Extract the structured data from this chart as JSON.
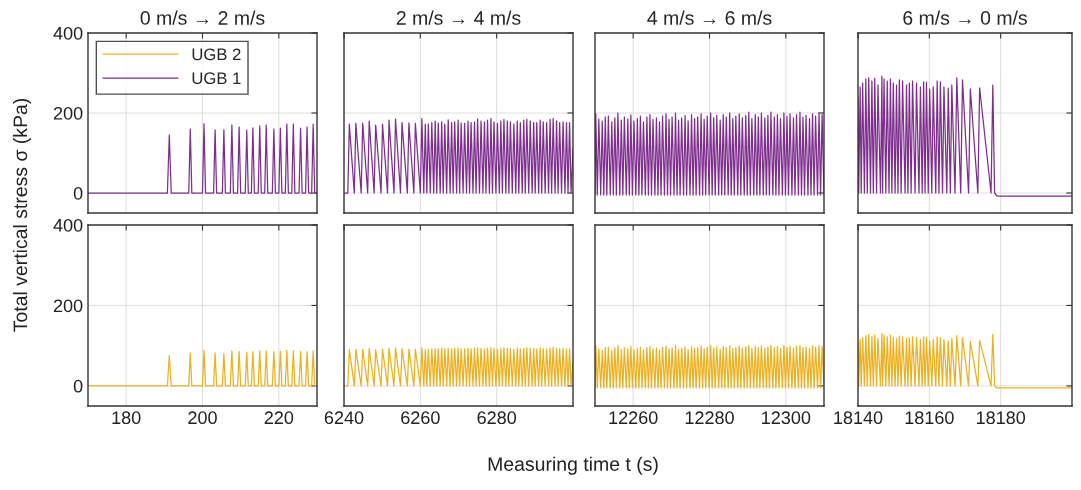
{
  "chart_data": [
    {
      "type": "line",
      "title": "0 m/s → 2 m/s",
      "ylabel": "Total vertical stress σ (kPa)",
      "legend": "top left",
      "grid": true,
      "tick_labels": "y",
      "xlim": [
        170,
        230
      ],
      "xticks": [
        180,
        200,
        220
      ],
      "ylim": [
        -50,
        400
      ],
      "yticks": [
        0,
        200,
        400
      ],
      "series": [
        {
          "name": "UGB 1",
          "color": "#7e2f8e",
          "x": [
            170,
            190.8,
            191.3,
            191.8,
            196.4,
            196.8,
            197.2,
            200.0,
            200.4,
            200.8,
            202.9,
            203.3,
            203.7,
            205.2,
            205.6,
            206.0,
            207.3,
            207.7,
            208.1,
            209.2,
            209.6,
            210.0,
            211.2,
            211.6,
            212.0,
            212.8,
            213.2,
            213.6,
            214.6,
            215.0,
            215.4,
            216.3,
            216.7,
            217.1,
            218.3,
            218.7,
            219.1,
            220.0,
            220.4,
            220.8,
            221.7,
            222.1,
            222.5,
            223.4,
            223.8,
            224.2,
            225.3,
            225.7,
            226.1,
            227.0,
            227.4,
            227.8,
            228.6,
            229.0,
            229.4,
            230
          ],
          "values": [
            0,
            0,
            145,
            0,
            0,
            160,
            0,
            0,
            173,
            0,
            0,
            158,
            0,
            0,
            158,
            0,
            0,
            170,
            0,
            0,
            165,
            0,
            0,
            157,
            0,
            0,
            163,
            0,
            0,
            168,
            0,
            0,
            170,
            0,
            0,
            160,
            0,
            0,
            162,
            0,
            0,
            172,
            0,
            0,
            172,
            0,
            0,
            162,
            0,
            0,
            165,
            0,
            0,
            172,
            0,
            0
          ]
        }
      ]
    },
    {
      "type": "line",
      "title": "2 m/s → 4 m/s",
      "grid": true,
      "tick_labels": false,
      "xlim": [
        6240,
        6300
      ],
      "xticks": [
        6240,
        6260,
        6280
      ],
      "ylim": [
        -50,
        400
      ],
      "yticks": [
        0,
        200,
        400
      ],
      "series": [
        {
          "color": "#7e2f8e",
          "x": [
            6240,
            6241.0,
            6241.4,
            6242.7,
            6243.1,
            6244.5,
            6244.9,
            6246.2,
            6246.6,
            6247.9,
            6248.3,
            6249.7,
            6250.1,
            6251.4,
            6251.8,
            6253.1,
            6253.5,
            6254.8,
            6255.2,
            6256.6,
            6257.0,
            6258.3,
            6258.7,
            6260.0,
            6260.4,
            6260.9,
            6261.3,
            6261.7,
            6262.1,
            6262.6,
            6263.0,
            6263.5,
            6263.9,
            6264.3,
            6264.7,
            6265.2,
            6265.6,
            6266.0,
            6266.4,
            6266.9,
            6267.3,
            6267.8,
            6268.2,
            6268.6,
            6269.0,
            6269.5,
            6269.9,
            6270.3,
            6270.7,
            6271.2,
            6271.6,
            6272.1,
            6272.5,
            6272.9,
            6273.3,
            6273.8,
            6274.2,
            6274.6,
            6275.0,
            6275.5,
            6275.9,
            6276.4,
            6276.8,
            6277.2,
            6277.6,
            6278.1,
            6278.5,
            6278.9,
            6279.3,
            6279.8,
            6280.2,
            6280.7,
            6281.1,
            6281.5,
            6281.9,
            6282.4,
            6282.8,
            6283.2,
            6283.6,
            6284.1,
            6284.5,
            6285.0,
            6285.4,
            6285.8,
            6286.2,
            6286.7,
            6287.1,
            6287.5,
            6287.9,
            6288.4,
            6288.8,
            6289.3,
            6289.7,
            6290.1,
            6290.5,
            6291.0,
            6291.4,
            6291.8,
            6292.2,
            6292.7,
            6293.1,
            6293.6,
            6294.0,
            6294.4,
            6294.8,
            6295.3,
            6295.7,
            6296.1,
            6296.5,
            6297.0,
            6297.4,
            6297.9,
            6298.3,
            6298.7,
            6299.1,
            6299.5,
            6300
          ],
          "values": [
            0,
            0,
            172,
            0,
            174,
            0,
            175,
            0,
            180,
            0,
            170,
            0,
            172,
            0,
            182,
            0,
            185,
            0,
            176,
            0,
            175,
            0,
            174,
            0,
            186,
            0,
            172,
            0,
            172,
            0,
            176,
            0,
            180,
            0,
            175,
            0,
            178,
            0,
            172,
            0,
            183,
            0,
            176,
            0,
            178,
            0,
            182,
            0,
            175,
            0,
            174,
            0,
            180,
            0,
            176,
            0,
            178,
            0,
            185,
            0,
            180,
            0,
            178,
            0,
            182,
            0,
            186,
            0,
            178,
            0,
            174,
            0,
            180,
            0,
            184,
            0,
            180,
            0,
            178,
            0,
            172,
            0,
            180,
            0,
            176,
            0,
            182,
            0,
            184,
            0,
            180,
            0,
            176,
            0,
            176,
            0,
            182,
            0,
            178,
            0,
            176,
            0,
            184,
            0,
            186,
            0,
            180,
            0,
            176,
            0,
            178,
            0,
            176,
            0,
            176,
            0,
            110
          ]
        }
      ]
    },
    {
      "type": "line",
      "title": "4 m/s → 6 m/s",
      "grid": true,
      "tick_labels": false,
      "xlim": [
        12250,
        12310
      ],
      "xticks": [
        12260,
        12280,
        12300
      ],
      "ylim": [
        -50,
        400
      ],
      "yticks": [
        0,
        200,
        400
      ],
      "series": [
        {
          "color": "#7e2f8e",
          "x": [
            12250.0,
            12250.2,
            12250.6,
            12251.0,
            12251.5,
            12251.9,
            12252.3,
            12252.7,
            12253.1,
            12253.5,
            12254.0,
            12254.4,
            12254.8,
            12255.2,
            12255.6,
            12256.0,
            12256.5,
            12256.9,
            12257.3,
            12257.7,
            12258.2,
            12258.6,
            12259.0,
            12259.4,
            12259.8,
            12260.2,
            12260.7,
            12261.1,
            12261.5,
            12261.9,
            12262.3,
            12262.7,
            12263.2,
            12263.6,
            12264.0,
            12264.4,
            12264.8,
            12265.2,
            12265.7,
            12266.1,
            12266.5,
            12266.9,
            12267.3,
            12267.7,
            12268.2,
            12268.6,
            12269.0,
            12269.4,
            12269.8,
            12270.2,
            12270.7,
            12271.1,
            12271.5,
            12271.9,
            12272.3,
            12272.7,
            12273.2,
            12273.6,
            12274.0,
            12274.4,
            12274.9,
            12275.3,
            12275.7,
            12276.1,
            12276.5,
            12276.9,
            12277.4,
            12277.8,
            12278.2,
            12278.6,
            12279.0,
            12279.4,
            12279.9,
            12280.3,
            12280.7,
            12281.1,
            12281.5,
            12281.9,
            12282.4,
            12282.8,
            12283.2,
            12283.6,
            12284.0,
            12284.4,
            12284.9,
            12285.3,
            12285.7,
            12286.1,
            12286.5,
            12286.9,
            12287.4,
            12287.8,
            12288.2,
            12288.6,
            12289.1,
            12289.5,
            12289.9,
            12290.3,
            12290.7,
            12291.1,
            12291.6,
            12292.0,
            12292.4,
            12292.8,
            12293.2,
            12293.6,
            12294.1,
            12294.5,
            12294.9,
            12295.3,
            12295.7,
            12296.1,
            12296.6,
            12297.0,
            12297.4,
            12297.8,
            12298.2,
            12298.6,
            12299.1,
            12299.5,
            12299.9,
            12300.3,
            12300.7,
            12301.1,
            12301.6,
            12302.0,
            12302.4,
            12302.8,
            12303.3,
            12303.7,
            12304.1,
            12304.5,
            12304.9,
            12305.3,
            12305.8,
            12306.2,
            12306.6,
            12307.0,
            12307.4,
            12307.8,
            12308.3,
            12308.7,
            12309.1,
            12309.5,
            12310
          ],
          "values": [
            -5,
            198,
            -5,
            185,
            -5,
            180,
            -5,
            190,
            -5,
            192,
            -5,
            178,
            -5,
            188,
            -5,
            200,
            -5,
            182,
            -5,
            190,
            -5,
            185,
            -5,
            195,
            -5,
            180,
            -5,
            186,
            -5,
            192,
            -5,
            178,
            -5,
            190,
            -5,
            196,
            -5,
            184,
            -5,
            188,
            -5,
            178,
            -5,
            192,
            -5,
            198,
            -5,
            184,
            -5,
            190,
            -5,
            200,
            -5,
            182,
            -5,
            188,
            -5,
            194,
            -5,
            180,
            -5,
            196,
            -5,
            186,
            -5,
            190,
            -5,
            198,
            -5,
            184,
            -5,
            192,
            -5,
            200,
            -5,
            188,
            -5,
            194,
            -5,
            182,
            -5,
            196,
            -5,
            190,
            -5,
            200,
            -5,
            186,
            -5,
            192,
            -5,
            198,
            -5,
            188,
            -5,
            194,
            -5,
            202,
            -5,
            186,
            -5,
            196,
            -5,
            190,
            -5,
            200,
            -5,
            188,
            -5,
            194,
            -5,
            202,
            -5,
            190,
            -5,
            196,
            -5,
            186,
            -5,
            200,
            -5,
            192,
            -5,
            198,
            -5,
            188,
            -5,
            196,
            -5,
            202,
            -5,
            190,
            -5,
            194,
            -5,
            186,
            -5,
            198,
            -5,
            192,
            -5,
            200,
            -5,
            196,
            -5
          ]
        }
      ]
    },
    {
      "type": "line",
      "title": "6 m/s → 0 m/s",
      "grid": true,
      "tick_labels": false,
      "xlim": [
        18140,
        18200
      ],
      "xticks": [
        18140,
        18160,
        18180
      ],
      "ylim": [
        -50,
        400
      ],
      "yticks": [
        0,
        200,
        400
      ],
      "series": [
        {
          "color": "#7e2f8e",
          "x": [
            18140,
            18140.2,
            18140.6,
            18140.9,
            18141.3,
            18141.8,
            18142.2,
            18142.6,
            18143.0,
            18143.5,
            18143.9,
            18144.3,
            18144.7,
            18145.2,
            18145.6,
            18146.3,
            18146.7,
            18146.9,
            18147.3,
            18147.8,
            18148.2,
            18148.7,
            18149.1,
            18149.5,
            18149.9,
            18150.4,
            18150.8,
            18151.2,
            18151.6,
            18152.1,
            18152.5,
            18153.2,
            18153.6,
            18154.0,
            18154.4,
            18154.9,
            18155.3,
            18156.0,
            18156.4,
            18157.1,
            18157.5,
            18158.0,
            18158.4,
            18158.8,
            18159.2,
            18159.7,
            18160.1,
            18160.7,
            18161.1,
            18161.8,
            18162.2,
            18162.7,
            18163.1,
            18163.7,
            18164.1,
            18164.9,
            18165.3,
            18165.9,
            18166.3,
            18167.2,
            18167.7,
            18168.8,
            18169.3,
            18171.0,
            18171.5,
            18173.6,
            18174.1,
            18177.3,
            18177.8,
            18178.3,
            18179.0,
            18200
          ],
          "values": [
            240,
            0,
            265,
            0,
            275,
            0,
            285,
            0,
            288,
            0,
            280,
            0,
            287,
            0,
            270,
            0,
            292,
            0,
            285,
            0,
            280,
            0,
            285,
            0,
            275,
            0,
            270,
            0,
            283,
            0,
            280,
            0,
            270,
            0,
            275,
            0,
            280,
            0,
            275,
            0,
            265,
            0,
            278,
            0,
            277,
            0,
            260,
            0,
            265,
            0,
            280,
            0,
            278,
            0,
            265,
            0,
            262,
            0,
            270,
            0,
            288,
            0,
            283,
            0,
            260,
            0,
            263,
            0,
            270,
            0,
            -8,
            -8
          ]
        }
      ]
    },
    {
      "type": "line",
      "grid": true,
      "xlim": [
        170,
        230
      ],
      "xticks": [
        180,
        200,
        220
      ],
      "ylim": [
        -50,
        400
      ],
      "yticks": [
        0,
        200,
        400
      ],
      "series": [
        {
          "name": "UGB 2",
          "color": "#edb120",
          "x": [
            170,
            190.8,
            191.3,
            191.8,
            196.4,
            196.8,
            197.2,
            200.0,
            200.4,
            200.8,
            202.9,
            203.3,
            203.7,
            205.2,
            205.6,
            206.0,
            207.3,
            207.7,
            208.1,
            209.2,
            209.6,
            210.0,
            211.2,
            211.6,
            212.0,
            212.8,
            213.2,
            213.6,
            214.6,
            215.0,
            215.4,
            216.3,
            216.7,
            217.1,
            218.3,
            218.7,
            219.1,
            220.0,
            220.4,
            220.8,
            221.7,
            222.1,
            222.5,
            223.4,
            223.8,
            224.2,
            225.3,
            225.7,
            226.1,
            227.0,
            227.4,
            227.8,
            228.6,
            229.0,
            229.4,
            230
          ],
          "values": [
            0,
            0,
            75,
            0,
            0,
            82,
            0,
            0,
            88,
            0,
            0,
            82,
            0,
            0,
            80,
            0,
            0,
            87,
            0,
            0,
            86,
            0,
            0,
            84,
            0,
            0,
            85,
            0,
            0,
            87,
            0,
            0,
            87,
            0,
            0,
            85,
            0,
            0,
            86,
            0,
            0,
            88,
            0,
            0,
            87,
            0,
            0,
            86,
            0,
            0,
            85,
            0,
            0,
            87,
            0,
            0
          ]
        }
      ]
    },
    {
      "type": "line",
      "grid": true,
      "tick_labels": "x",
      "xlabel": "Measuring time t (s)",
      "xlim": [
        6240,
        6300
      ],
      "xticks": [
        6240,
        6260,
        6280
      ],
      "ylim": [
        -50,
        400
      ],
      "yticks": [
        0,
        200,
        400
      ],
      "series": [
        {
          "color": "#edb120",
          "x": [
            6240,
            6241.0,
            6241.4,
            6242.7,
            6243.1,
            6244.5,
            6244.9,
            6246.2,
            6246.6,
            6247.9,
            6248.3,
            6249.7,
            6250.1,
            6251.4,
            6251.8,
            6253.1,
            6253.5,
            6254.8,
            6255.2,
            6256.6,
            6257.0,
            6258.3,
            6258.7,
            6260.0,
            6260.4,
            6260.9,
            6261.3,
            6261.7,
            6262.1,
            6262.6,
            6263.0,
            6263.5,
            6263.9,
            6264.3,
            6264.7,
            6265.2,
            6265.6,
            6266.0,
            6266.4,
            6266.9,
            6267.3,
            6267.8,
            6268.2,
            6268.6,
            6269.0,
            6269.5,
            6269.9,
            6270.3,
            6270.7,
            6271.2,
            6271.6,
            6272.1,
            6272.5,
            6272.9,
            6273.3,
            6273.8,
            6274.2,
            6274.6,
            6275.0,
            6275.5,
            6275.9,
            6276.4,
            6276.8,
            6277.2,
            6277.6,
            6278.1,
            6278.5,
            6278.9,
            6279.3,
            6279.8,
            6280.2,
            6280.7,
            6281.1,
            6281.5,
            6281.9,
            6282.4,
            6282.8,
            6283.2,
            6283.6,
            6284.1,
            6284.5,
            6285.0,
            6285.4,
            6285.8,
            6286.2,
            6286.7,
            6287.1,
            6287.5,
            6287.9,
            6288.4,
            6288.8,
            6289.3,
            6289.7,
            6290.1,
            6290.5,
            6291.0,
            6291.4,
            6291.8,
            6292.2,
            6292.7,
            6293.1,
            6293.6,
            6294.0,
            6294.4,
            6294.8,
            6295.3,
            6295.7,
            6296.1,
            6296.5,
            6297.0,
            6297.4,
            6297.9,
            6298.3,
            6298.7,
            6299.1,
            6299.5,
            6300
          ],
          "values": [
            0,
            0,
            90,
            0,
            91,
            0,
            91,
            0,
            93,
            0,
            90,
            0,
            91,
            0,
            93,
            0,
            94,
            0,
            92,
            0,
            91,
            0,
            91,
            0,
            95,
            0,
            90,
            0,
            91,
            0,
            92,
            0,
            93,
            0,
            92,
            0,
            94,
            0,
            92,
            0,
            93,
            0,
            92,
            0,
            94,
            0,
            94,
            0,
            92,
            0,
            92,
            0,
            93,
            0,
            92,
            0,
            94,
            0,
            95,
            0,
            93,
            0,
            92,
            0,
            94,
            0,
            95,
            0,
            93,
            0,
            91,
            0,
            93,
            0,
            95,
            0,
            93,
            0,
            93,
            0,
            91,
            0,
            94,
            0,
            92,
            0,
            93,
            0,
            95,
            0,
            93,
            0,
            92,
            0,
            92,
            0,
            95,
            0,
            93,
            0,
            92,
            0,
            94,
            0,
            96,
            0,
            93,
            0,
            92,
            0,
            93,
            0,
            92,
            0,
            92,
            0,
            60
          ]
        }
      ]
    },
    {
      "type": "line",
      "grid": true,
      "tick_labels": "x",
      "xlim": [
        12250,
        12310
      ],
      "xticks": [
        12260,
        12280,
        12300
      ],
      "ylim": [
        -50,
        400
      ],
      "yticks": [
        0,
        200,
        400
      ],
      "series": [
        {
          "color": "#edb120",
          "x": [
            12250.0,
            12250.2,
            12250.6,
            12251.0,
            12251.5,
            12251.9,
            12252.3,
            12252.7,
            12253.1,
            12253.5,
            12254.0,
            12254.4,
            12254.8,
            12255.2,
            12255.6,
            12256.0,
            12256.5,
            12256.9,
            12257.3,
            12257.7,
            12258.2,
            12258.6,
            12259.0,
            12259.4,
            12259.8,
            12260.2,
            12260.7,
            12261.1,
            12261.5,
            12261.9,
            12262.3,
            12262.7,
            12263.2,
            12263.6,
            12264.0,
            12264.4,
            12264.8,
            12265.2,
            12265.7,
            12266.1,
            12266.5,
            12266.9,
            12267.3,
            12267.7,
            12268.2,
            12268.6,
            12269.0,
            12269.4,
            12269.8,
            12270.2,
            12270.7,
            12271.1,
            12271.5,
            12271.9,
            12272.3,
            12272.7,
            12273.2,
            12273.6,
            12274.0,
            12274.4,
            12274.9,
            12275.3,
            12275.7,
            12276.1,
            12276.5,
            12276.9,
            12277.4,
            12277.8,
            12278.2,
            12278.6,
            12279.0,
            12279.4,
            12279.9,
            12280.3,
            12280.7,
            12281.1,
            12281.5,
            12281.9,
            12282.4,
            12282.8,
            12283.2,
            12283.6,
            12284.0,
            12284.4,
            12284.9,
            12285.3,
            12285.7,
            12286.1,
            12286.5,
            12286.9,
            12287.4,
            12287.8,
            12288.2,
            12288.6,
            12289.1,
            12289.5,
            12289.9,
            12290.3,
            12290.7,
            12291.1,
            12291.6,
            12292.0,
            12292.4,
            12292.8,
            12293.2,
            12293.6,
            12294.1,
            12294.5,
            12294.9,
            12295.3,
            12295.7,
            12296.1,
            12296.6,
            12297.0,
            12297.4,
            12297.8,
            12298.2,
            12298.6,
            12299.1,
            12299.5,
            12299.9,
            12300.3,
            12300.7,
            12301.1,
            12301.6,
            12302.0,
            12302.4,
            12302.8,
            12303.3,
            12303.7,
            12304.1,
            12304.5,
            12304.9,
            12305.3,
            12305.8,
            12306.2,
            12306.6,
            12307.0,
            12307.4,
            12307.8,
            12308.3,
            12308.7,
            12309.1,
            12309.5,
            12310
          ],
          "values": [
            -5,
            100,
            -5,
            92,
            -5,
            88,
            -5,
            95,
            -5,
            96,
            -5,
            88,
            -5,
            94,
            -5,
            100,
            -5,
            90,
            -5,
            95,
            -5,
            92,
            -5,
            98,
            -5,
            90,
            -5,
            93,
            -5,
            96,
            -5,
            89,
            -5,
            95,
            -5,
            98,
            -5,
            92,
            -5,
            94,
            -5,
            89,
            -5,
            96,
            -5,
            99,
            -5,
            92,
            -5,
            95,
            -5,
            100,
            -5,
            91,
            -5,
            94,
            -5,
            97,
            -5,
            90,
            -5,
            98,
            -5,
            93,
            -5,
            95,
            -5,
            99,
            -5,
            92,
            -5,
            96,
            -5,
            100,
            -5,
            94,
            -5,
            97,
            -5,
            91,
            -5,
            98,
            -5,
            95,
            -5,
            100,
            -5,
            93,
            -5,
            96,
            -5,
            99,
            -5,
            94,
            -5,
            97,
            -5,
            101,
            -5,
            93,
            -5,
            98,
            -5,
            95,
            -5,
            100,
            -5,
            94,
            -5,
            97,
            -5,
            101,
            -5,
            95,
            -5,
            98,
            -5,
            93,
            -5,
            100,
            -5,
            96,
            -5,
            99,
            -5,
            94,
            -5,
            98,
            -5,
            101,
            -5,
            95,
            -5,
            97,
            -5,
            93,
            -5,
            99,
            -5,
            96,
            -5,
            100,
            -5,
            98,
            -5
          ]
        }
      ]
    },
    {
      "type": "line",
      "grid": true,
      "tick_labels": "x",
      "xlim": [
        18140,
        18200
      ],
      "xticks": [
        18140,
        18160,
        18180
      ],
      "ylim": [
        -50,
        400
      ],
      "yticks": [
        0,
        200,
        400
      ],
      "series": [
        {
          "color": "#edb120",
          "x": [
            18140,
            18140.2,
            18140.6,
            18140.9,
            18141.3,
            18141.8,
            18142.2,
            18142.6,
            18143.0,
            18143.5,
            18143.9,
            18144.3,
            18144.7,
            18145.2,
            18145.6,
            18146.3,
            18146.7,
            18146.9,
            18147.3,
            18147.8,
            18148.2,
            18148.7,
            18149.1,
            18149.5,
            18149.9,
            18150.4,
            18150.8,
            18151.2,
            18151.6,
            18152.1,
            18152.5,
            18153.2,
            18153.6,
            18154.0,
            18154.4,
            18154.9,
            18155.3,
            18156.0,
            18156.4,
            18157.1,
            18157.5,
            18158.0,
            18158.4,
            18158.8,
            18159.2,
            18159.7,
            18160.1,
            18160.7,
            18161.1,
            18161.8,
            18162.2,
            18162.7,
            18163.1,
            18163.7,
            18164.1,
            18164.9,
            18165.3,
            18165.9,
            18166.3,
            18167.2,
            18167.7,
            18168.8,
            18169.3,
            18171.0,
            18171.5,
            18173.6,
            18174.1,
            18177.3,
            18177.8,
            18178.3,
            18179.0,
            18200
          ],
          "values": [
            110,
            0,
            115,
            0,
            120,
            0,
            125,
            0,
            128,
            0,
            122,
            0,
            127,
            0,
            118,
            0,
            130,
            0,
            126,
            0,
            122,
            0,
            126,
            0,
            120,
            0,
            118,
            0,
            124,
            0,
            122,
            0,
            118,
            0,
            120,
            0,
            122,
            0,
            120,
            0,
            115,
            0,
            122,
            0,
            121,
            0,
            112,
            0,
            115,
            0,
            122,
            0,
            120,
            0,
            115,
            0,
            112,
            0,
            118,
            0,
            125,
            0,
            120,
            0,
            110,
            0,
            113,
            0,
            128,
            0,
            -5,
            -5
          ]
        }
      ]
    }
  ]
}
